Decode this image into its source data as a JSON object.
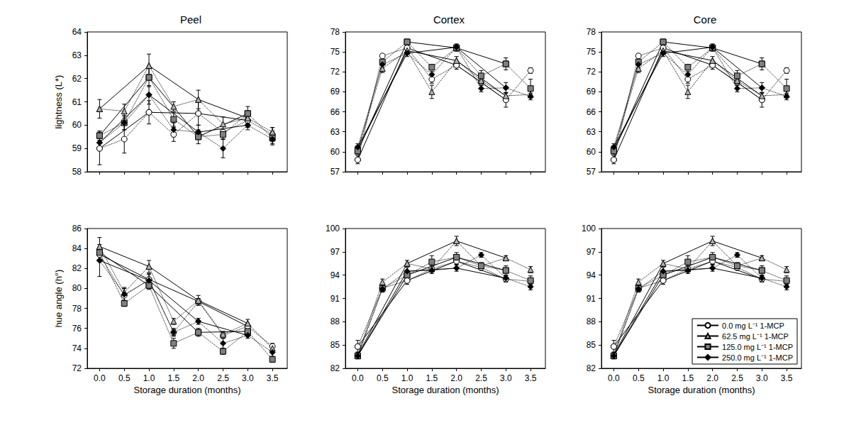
{
  "chart_data": [
    {
      "type": "line",
      "title": "Peel",
      "y_label": "lightness (L*)",
      "tick_labels": "y",
      "x": [
        0,
        0.5,
        1,
        1.5,
        2,
        2.5,
        3,
        3.5
      ],
      "xlim": [
        -0.25,
        3.8
      ],
      "xticks": [
        {
          "value": 0,
          "label": "0.0"
        },
        0.5,
        {
          "value": 1,
          "label": "1.0"
        },
        1.5,
        {
          "value": 2,
          "label": "2.0"
        },
        2.5,
        {
          "value": 3,
          "label": "3.0"
        },
        3.5
      ],
      "ylim": [
        58,
        64
      ],
      "yticks": [
        58,
        59,
        60,
        61,
        62,
        63,
        64
      ],
      "series": [
        {
          "name": "0.0 mg L⁻¹ 1-MCP",
          "color": "#ffffff",
          "marker": "circle",
          "line_style": "dotted",
          "values": [
            59.0,
            59.4,
            60.55,
            59.6,
            60.5,
            59.7,
            60.2,
            59.6
          ],
          "errors": [
            0.7,
            0.6,
            0.5,
            0.3,
            0.5,
            0.3,
            0.3,
            0.3
          ]
        },
        {
          "name": "62.5 mg L⁻¹ 1-MCP",
          "color": "#b0b0b0",
          "marker": "triangle",
          "line_style": "dotted",
          "values": [
            60.7,
            60.6,
            62.55,
            60.8,
            61.1,
            60.05,
            60.3,
            59.7
          ],
          "errors": [
            0.4,
            0.3,
            0.5,
            0.2,
            0.4,
            0.3,
            0.2,
            0.2
          ]
        },
        {
          "name": "125.0 mg L⁻¹ 1-MCP",
          "color": "#808080",
          "marker": "square",
          "line_style": "dotted",
          "values": [
            59.55,
            60.1,
            62.05,
            60.25,
            59.5,
            59.6,
            60.5,
            59.45
          ],
          "errors": [
            0.2,
            0.3,
            0.4,
            0.3,
            0.3,
            0.2,
            0.3,
            0.3
          ]
        },
        {
          "name": "250.0 mg L⁻¹ 1-MCP",
          "color": "#000000",
          "marker": "diamond",
          "line_style": "dotted",
          "values": [
            59.25,
            60.1,
            61.3,
            59.8,
            59.7,
            59.0,
            60.0,
            59.4
          ],
          "errors": [
            0.2,
            0.3,
            0.4,
            0.3,
            0.3,
            0.4,
            0.2,
            0.2
          ]
        }
      ]
    },
    {
      "type": "line",
      "title": "Cortex",
      "tick_labels": "y",
      "x": [
        0,
        0.5,
        1,
        1.5,
        2,
        2.5,
        3,
        3.5
      ],
      "xlim": [
        -0.25,
        3.8
      ],
      "xticks": [
        {
          "value": 0,
          "label": "0.0"
        },
        0.5,
        {
          "value": 1,
          "label": "1.0"
        },
        1.5,
        {
          "value": 2,
          "label": "2.0"
        },
        2.5,
        {
          "value": 3,
          "label": "3.0"
        },
        3.5
      ],
      "ylim": [
        57,
        78
      ],
      "yticks": [
        57,
        60,
        63,
        66,
        69,
        72,
        75,
        78
      ],
      "series": [
        {
          "name": "0.0 mg L⁻¹ 1-MCP",
          "color": "#ffffff",
          "marker": "circle",
          "line_style": "dotted",
          "values": [
            58.8,
            74.4,
            75.6,
            70.9,
            73.0,
            70.5,
            67.8,
            72.2
          ],
          "errors": [
            0.6,
            0.3,
            0.5,
            0.6,
            0.6,
            0.5,
            1.1,
            0.4
          ]
        },
        {
          "name": "62.5 mg L⁻¹ 1-MCP",
          "color": "#b0b0b0",
          "marker": "triangle",
          "line_style": "dotted",
          "values": [
            60.3,
            72.5,
            75.2,
            69.0,
            73.7,
            70.7,
            68.4,
            68.6
          ],
          "errors": [
            0.5,
            0.6,
            0.4,
            1.0,
            0.6,
            0.5,
            0.5,
            0.5
          ]
        },
        {
          "name": "125.0 mg L⁻¹ 1-MCP",
          "color": "#808080",
          "marker": "square",
          "line_style": "dotted",
          "values": [
            60.1,
            73.5,
            76.5,
            72.7,
            75.6,
            71.4,
            73.2,
            69.5
          ],
          "errors": [
            0.5,
            0.3,
            0.4,
            0.4,
            0.5,
            0.8,
            0.9,
            1.4
          ]
        },
        {
          "name": "250.0 mg L⁻¹ 1-MCP",
          "color": "#000000",
          "marker": "diamond",
          "line_style": "dotted",
          "values": [
            60.7,
            73.1,
            74.8,
            71.6,
            75.7,
            69.5,
            69.6,
            68.3
          ],
          "errors": [
            0.5,
            0.5,
            0.5,
            0.5,
            0.5,
            0.5,
            0.8,
            0.5
          ]
        }
      ]
    },
    {
      "type": "line",
      "title": "Core",
      "tick_labels": "y",
      "x": [
        0,
        0.5,
        1,
        1.5,
        2,
        2.5,
        3,
        3.5
      ],
      "xlim": [
        -0.25,
        3.8
      ],
      "xticks": [
        {
          "value": 0,
          "label": "0.0"
        },
        0.5,
        {
          "value": 1,
          "label": "1.0"
        },
        1.5,
        {
          "value": 2,
          "label": "2.0"
        },
        2.5,
        {
          "value": 3,
          "label": "3.0"
        },
        3.5
      ],
      "ylim": [
        57,
        78
      ],
      "yticks": [
        57,
        60,
        63,
        66,
        69,
        72,
        75,
        78
      ],
      "series": [
        {
          "name": "0.0 mg L⁻¹ 1-MCP",
          "color": "#ffffff",
          "marker": "circle",
          "line_style": "dotted",
          "values": [
            58.8,
            74.4,
            75.6,
            70.9,
            73.0,
            70.5,
            67.8,
            72.2
          ],
          "errors": [
            0.6,
            0.3,
            0.5,
            0.6,
            0.6,
            0.5,
            1.1,
            0.4
          ]
        },
        {
          "name": "62.5 mg L⁻¹ 1-MCP",
          "color": "#b0b0b0",
          "marker": "triangle",
          "line_style": "dotted",
          "values": [
            60.3,
            72.5,
            75.2,
            69.0,
            73.7,
            70.7,
            68.4,
            68.6
          ],
          "errors": [
            0.5,
            0.6,
            0.4,
            1.0,
            0.6,
            0.5,
            0.5,
            0.5
          ]
        },
        {
          "name": "125.0 mg L⁻¹ 1-MCP",
          "color": "#808080",
          "marker": "square",
          "line_style": "dotted",
          "values": [
            60.1,
            73.5,
            76.5,
            72.7,
            75.6,
            71.4,
            73.2,
            69.5
          ],
          "errors": [
            0.5,
            0.3,
            0.4,
            0.4,
            0.5,
            0.8,
            0.9,
            1.4
          ]
        },
        {
          "name": "250.0 mg L⁻¹ 1-MCP",
          "color": "#000000",
          "marker": "diamond",
          "line_style": "dotted",
          "values": [
            60.7,
            73.1,
            74.8,
            71.6,
            75.7,
            69.5,
            69.6,
            68.3
          ],
          "errors": [
            0.5,
            0.5,
            0.5,
            0.5,
            0.5,
            0.5,
            0.8,
            0.5
          ]
        }
      ]
    },
    {
      "type": "line",
      "y_label": "hue angle (h°)",
      "x_label": "Storage duration (months)",
      "x": [
        0,
        0.5,
        1,
        1.5,
        2,
        2.5,
        3,
        3.5
      ],
      "xlim": [
        -0.25,
        3.8
      ],
      "xticks": [
        {
          "value": 0,
          "label": "0.0"
        },
        0.5,
        {
          "value": 1,
          "label": "1.0"
        },
        1.5,
        {
          "value": 2,
          "label": "2.0"
        },
        2.5,
        {
          "value": 3,
          "label": "3.0"
        },
        3.5
      ],
      "ylim": [
        72,
        86
      ],
      "yticks": [
        72,
        74,
        76,
        78,
        80,
        82,
        84,
        86
      ],
      "series": [
        {
          "name": "0.0 mg L⁻¹ 1-MCP",
          "color": "#ffffff",
          "marker": "circle",
          "line_style": "dotted",
          "values": [
            83.4,
            79.3,
            80.9,
            75.6,
            78.7,
            75.3,
            76.2,
            74.2
          ],
          "errors": [
            0.5,
            0.8,
            0.6,
            0.3,
            0.3,
            0.3,
            0.3,
            0.3
          ]
        },
        {
          "name": "62.5 mg L⁻¹ 1-MCP",
          "color": "#b0b0b0",
          "marker": "triangle",
          "line_style": "dotted",
          "values": [
            84.2,
            79.6,
            82.2,
            76.7,
            78.8,
            75.4,
            76.5,
            74.0
          ],
          "errors": [
            0.9,
            0.4,
            0.6,
            0.3,
            0.5,
            0.3,
            0.4,
            0.3
          ]
        },
        {
          "name": "125.0 mg L⁻¹ 1-MCP",
          "color": "#808080",
          "marker": "square",
          "line_style": "dotted",
          "values": [
            83.6,
            78.5,
            80.3,
            74.5,
            75.6,
            73.7,
            75.7,
            72.9
          ],
          "errors": [
            0.3,
            0.3,
            0.4,
            0.5,
            0.4,
            0.3,
            0.3,
            0.3
          ]
        },
        {
          "name": "250.0 mg L⁻¹ 1-MCP",
          "color": "#000000",
          "marker": "diamond",
          "line_style": "dotted",
          "values": [
            82.8,
            79.4,
            80.8,
            75.6,
            76.7,
            74.5,
            75.3,
            73.6
          ],
          "errors": [
            1.6,
            0.6,
            0.6,
            0.4,
            0.3,
            0.5,
            0.3,
            0.5
          ]
        }
      ]
    },
    {
      "type": "line",
      "x_label": "Storage duration (months)",
      "x": [
        0,
        0.5,
        1,
        1.5,
        2,
        2.5,
        3,
        3.5
      ],
      "xlim": [
        -0.25,
        3.8
      ],
      "xticks": [
        {
          "value": 0,
          "label": "0.0"
        },
        0.5,
        {
          "value": 1,
          "label": "1.0"
        },
        1.5,
        {
          "value": 2,
          "label": "2.0"
        },
        2.5,
        {
          "value": 3,
          "label": "3.0"
        },
        3.5
      ],
      "ylim": [
        82,
        100
      ],
      "yticks": [
        82,
        85,
        88,
        91,
        94,
        97,
        100
      ],
      "series": [
        {
          "name": "0.0 mg L⁻¹ 1-MCP",
          "color": "#ffffff",
          "marker": "circle",
          "line_style": "dotted",
          "values": [
            84.8,
            92.3,
            93.3,
            94.8,
            95.8,
            95.0,
            93.5,
            93.2
          ],
          "errors": [
            0.8,
            0.4,
            0.5,
            0.4,
            0.4,
            0.4,
            0.4,
            0.4
          ]
        },
        {
          "name": "62.5 mg L⁻¹ 1-MCP",
          "color": "#b0b0b0",
          "marker": "triangle",
          "line_style": "dotted",
          "values": [
            83.7,
            93.1,
            95.5,
            94.8,
            98.4,
            95.2,
            96.2,
            94.7
          ],
          "errors": [
            0.4,
            0.4,
            0.4,
            0.4,
            0.6,
            0.4,
            0.3,
            0.4
          ]
        },
        {
          "name": "125.0 mg L⁻¹ 1-MCP",
          "color": "#808080",
          "marker": "square",
          "line_style": "dotted",
          "values": [
            83.6,
            92.3,
            94.0,
            95.7,
            96.3,
            95.2,
            94.6,
            93.3
          ],
          "errors": [
            0.3,
            0.4,
            0.4,
            0.8,
            0.6,
            0.4,
            0.6,
            0.6
          ]
        },
        {
          "name": "250.0 mg L⁻¹ 1-MCP",
          "color": "#000000",
          "marker": "diamond",
          "line_style": "dotted",
          "values": [
            83.6,
            92.2,
            94.5,
            94.6,
            94.9,
            96.6,
            93.6,
            92.5
          ],
          "errors": [
            0.4,
            0.4,
            0.5,
            0.4,
            0.4,
            0.3,
            0.4,
            0.4
          ]
        }
      ]
    },
    {
      "type": "line",
      "x_label": "Storage duration (months)",
      "legend": "lower right",
      "x": [
        0,
        0.5,
        1,
        1.5,
        2,
        2.5,
        3,
        3.5
      ],
      "xlim": [
        -0.25,
        3.8
      ],
      "xticks": [
        {
          "value": 0,
          "label": "0.0"
        },
        0.5,
        {
          "value": 1,
          "label": "1.0"
        },
        1.5,
        {
          "value": 2,
          "label": "2.0"
        },
        2.5,
        {
          "value": 3,
          "label": "3.0"
        },
        3.5
      ],
      "ylim": [
        82,
        100
      ],
      "yticks": [
        82,
        85,
        88,
        91,
        94,
        97,
        100
      ],
      "series": [
        {
          "name": "0.0 mg L⁻¹ 1-MCP",
          "color": "#ffffff",
          "marker": "circle",
          "line_style": "dotted",
          "values": [
            84.8,
            92.3,
            93.3,
            94.8,
            95.8,
            95.0,
            93.5,
            93.2
          ],
          "errors": [
            0.8,
            0.4,
            0.5,
            0.4,
            0.4,
            0.4,
            0.4,
            0.4
          ]
        },
        {
          "name": "62.5 mg L⁻¹ 1-MCP",
          "color": "#b0b0b0",
          "marker": "triangle",
          "line_style": "dotted",
          "values": [
            83.7,
            93.1,
            95.5,
            94.8,
            98.4,
            95.2,
            96.2,
            94.7
          ],
          "errors": [
            0.4,
            0.4,
            0.4,
            0.4,
            0.6,
            0.4,
            0.3,
            0.4
          ]
        },
        {
          "name": "125.0 mg L⁻¹ 1-MCP",
          "color": "#808080",
          "marker": "square",
          "line_style": "dotted",
          "values": [
            83.6,
            92.3,
            94.0,
            95.7,
            96.3,
            95.2,
            94.6,
            93.3
          ],
          "errors": [
            0.3,
            0.4,
            0.4,
            0.8,
            0.6,
            0.4,
            0.6,
            0.6
          ]
        },
        {
          "name": "250.0 mg L⁻¹ 1-MCP",
          "color": "#000000",
          "marker": "diamond",
          "line_style": "dotted",
          "values": [
            83.6,
            92.2,
            94.5,
            94.6,
            94.9,
            96.6,
            93.6,
            92.5
          ],
          "errors": [
            0.4,
            0.4,
            0.5,
            0.4,
            0.4,
            0.3,
            0.4,
            0.4
          ]
        }
      ]
    }
  ]
}
